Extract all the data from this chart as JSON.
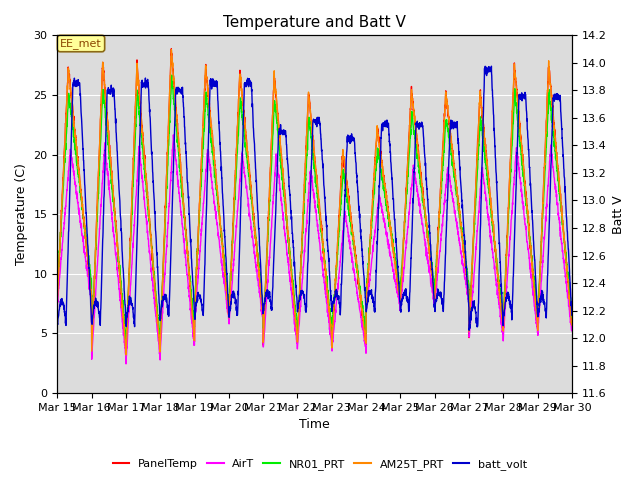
{
  "title": "Temperature and Batt V",
  "xlabel": "Time",
  "ylabel_left": "Temperature (C)",
  "ylabel_right": "Batt V",
  "annotation": "EE_met",
  "ylim_left": [
    0,
    30
  ],
  "ylim_right": [
    11.6,
    14.2
  ],
  "yticks_left": [
    0,
    5,
    10,
    15,
    20,
    25,
    30
  ],
  "yticks_right": [
    11.6,
    11.8,
    12.0,
    12.2,
    12.4,
    12.6,
    12.8,
    13.0,
    13.2,
    13.4,
    13.6,
    13.8,
    14.0,
    14.2
  ],
  "xtick_labels": [
    "Mar 15",
    "Mar 16",
    "Mar 17",
    "Mar 18",
    "Mar 19",
    "Mar 20",
    "Mar 21",
    "Mar 22",
    "Mar 23",
    "Mar 24",
    "Mar 25",
    "Mar 26",
    "Mar 27",
    "Mar 28",
    "Mar 29",
    "Mar 30"
  ],
  "series": [
    {
      "name": "PanelTemp",
      "color": "#FF0000",
      "lw": 1.0
    },
    {
      "name": "AirT",
      "color": "#FF00FF",
      "lw": 1.0
    },
    {
      "name": "NR01_PRT",
      "color": "#00EE00",
      "lw": 1.0
    },
    {
      "name": "AM25T_PRT",
      "color": "#FF8800",
      "lw": 1.0
    },
    {
      "name": "batt_volt",
      "color": "#0000CC",
      "lw": 1.0
    }
  ],
  "bg_color": "#DCDCDC",
  "fig_bg": "#FFFFFF",
  "title_fontsize": 11,
  "label_fontsize": 9,
  "tick_fontsize": 8,
  "legend_fontsize": 8,
  "peak_temps": [
    27.3,
    27.8,
    27.5,
    28.8,
    27.4,
    26.9,
    26.7,
    25.2,
    20.3,
    22.2,
    25.4,
    25.2,
    25.3,
    27.5
  ],
  "trough_temps": [
    8.0,
    3.5,
    3.2,
    4.2,
    6.5,
    6.3,
    4.2,
    4.5,
    4.0,
    7.5,
    7.8,
    8.0,
    5.0,
    5.5
  ],
  "batt_high": [
    13.85,
    13.8,
    13.85,
    13.8,
    13.85,
    13.85,
    13.5,
    13.58,
    13.45,
    13.55,
    13.55,
    13.55,
    13.95,
    13.75
  ],
  "batt_low": [
    12.1,
    12.1,
    12.1,
    12.15,
    12.15,
    12.15,
    12.2,
    12.2,
    12.2,
    12.2,
    12.2,
    12.2,
    12.05,
    12.15
  ]
}
